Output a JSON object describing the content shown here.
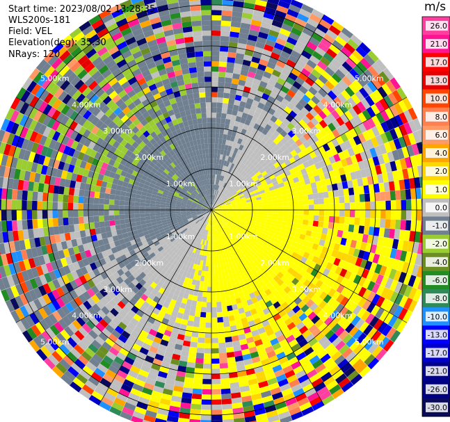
{
  "header": {
    "start_time": "Start time: 2023/08/02 13:28:35",
    "site": "WLS200s-181",
    "field": "Field: VEL",
    "elevation": "Elevation(deg): 35.30",
    "nrays": "NRays: 120"
  },
  "colorbar": {
    "unit": "m/s",
    "ticks": [
      "26.0",
      "21.0",
      "17.0",
      "13.0",
      "10.0",
      "8.0",
      "6.0",
      "4.0",
      "2.0",
      "1.0",
      "0.0",
      "-1.0",
      "-2.0",
      "-4.0",
      "-6.0",
      "-8.0",
      "-10.0",
      "-13.0",
      "-17.0",
      "-21.0",
      "-26.0",
      "-30.0"
    ],
    "colors": [
      "#ff3fa0",
      "#ff1493",
      "#ff0000",
      "#e60000",
      "#ff4500",
      "#ff7f50",
      "#ff9a66",
      "#ffa500",
      "#ffd700",
      "#ffff00",
      "#bfbfbf",
      "#708090",
      "#9acd32",
      "#6b8e23",
      "#228b22",
      "#2e8b57",
      "#1e90ff",
      "#0000ff",
      "#0000cd",
      "#00008b",
      "#000080",
      "#0a0a5a"
    ]
  },
  "chart_data": {
    "type": "heatmap",
    "projection": "polar PPI",
    "field": "VEL",
    "units": "m/s",
    "n_rays": 120,
    "range_rings_km": [
      "1.00km",
      "2.00km",
      "3.00km",
      "4.00km",
      "5.00km"
    ],
    "ring_label_text": {
      "lower_right": [
        "1.00km",
        "2.00km",
        "3.00km",
        "4.00km",
        "5.00km"
      ],
      "lower_left": [
        "1.00km",
        "2.00km",
        "3.00km",
        "4.00km",
        "5.00km"
      ],
      "upper_left": [
        "1.00km",
        "2.00km",
        "3.00km",
        "4.00km",
        "5.00km"
      ],
      "upper_right": [
        "1.00km",
        "2.00km",
        "3.00km",
        "4.00km",
        "5.00km"
      ]
    },
    "vmin": -30.0,
    "vmax": 30.0,
    "max_range_km": 5.5
  }
}
